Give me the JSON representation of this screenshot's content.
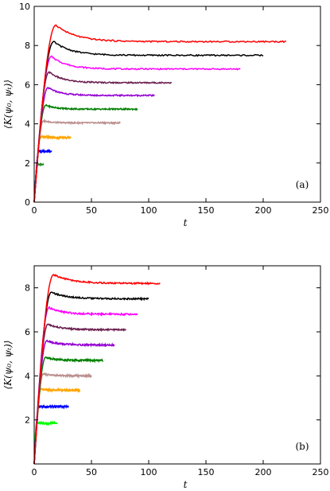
{
  "chart_data": [
    {
      "type": "line",
      "panel_label": "(a)",
      "xlabel": "t",
      "ylabel": "⟨K(ψ₀, ψₜ)⟩",
      "xlim": [
        0,
        250
      ],
      "ylim": [
        0,
        10
      ],
      "xticks": [
        0,
        50,
        100,
        150,
        200,
        250
      ],
      "yticks": [
        0,
        2,
        4,
        6,
        8,
        10
      ],
      "grid": false,
      "series": [
        {
          "color": "#228b22",
          "peak": 1.95,
          "peak_t": 3,
          "plateau": 1.9,
          "end_t": 8
        },
        {
          "color": "#0000ff",
          "peak": 2.6,
          "peak_t": 4,
          "plateau": 2.6,
          "end_t": 15
        },
        {
          "color": "#ffa500",
          "peak": 3.35,
          "peak_t": 6,
          "plateau": 3.3,
          "end_t": 32
        },
        {
          "color": "#bc8f8f",
          "peak": 4.15,
          "peak_t": 8,
          "plateau": 4.05,
          "end_t": 75
        },
        {
          "color": "#008000",
          "peak": 4.95,
          "peak_t": 10,
          "plateau": 4.75,
          "end_t": 90
        },
        {
          "color": "#9400d3",
          "peak": 5.85,
          "peak_t": 12,
          "plateau": 5.45,
          "end_t": 105
        },
        {
          "color": "#6b1f4f",
          "peak": 6.65,
          "peak_t": 13,
          "plateau": 6.1,
          "end_t": 120
        },
        {
          "color": "#ff00ff",
          "peak": 7.45,
          "peak_t": 15,
          "plateau": 6.8,
          "end_t": 180
        },
        {
          "color": "#000000",
          "peak": 8.2,
          "peak_t": 17,
          "plateau": 7.5,
          "end_t": 200
        },
        {
          "color": "#ff0000",
          "peak": 9.05,
          "peak_t": 19,
          "plateau": 8.2,
          "end_t": 220
        }
      ]
    },
    {
      "type": "line",
      "panel_label": "(b)",
      "xlabel": "t",
      "ylabel": "⟨K(ψ₀, ψₜ)⟩",
      "xlim": [
        0,
        250
      ],
      "ylim": [
        0,
        9
      ],
      "xticks": [
        0,
        50,
        100,
        150,
        200,
        250
      ],
      "yticks": [
        2,
        4,
        6,
        8
      ],
      "grid": false,
      "series": [
        {
          "color": "#00ff00",
          "peak": 1.85,
          "peak_t": 2,
          "plateau": 1.85,
          "end_t": 20
        },
        {
          "color": "#0000ff",
          "peak": 2.6,
          "peak_t": 4,
          "plateau": 2.6,
          "end_t": 30
        },
        {
          "color": "#ffa500",
          "peak": 3.4,
          "peak_t": 6,
          "plateau": 3.35,
          "end_t": 40
        },
        {
          "color": "#bc8f8f",
          "peak": 4.1,
          "peak_t": 8,
          "plateau": 4.0,
          "end_t": 50
        },
        {
          "color": "#008000",
          "peak": 4.85,
          "peak_t": 10,
          "plateau": 4.7,
          "end_t": 60
        },
        {
          "color": "#9400d3",
          "peak": 5.6,
          "peak_t": 11,
          "plateau": 5.4,
          "end_t": 70
        },
        {
          "color": "#6b1f4f",
          "peak": 6.35,
          "peak_t": 12,
          "plateau": 6.1,
          "end_t": 80
        },
        {
          "color": "#ff00ff",
          "peak": 7.1,
          "peak_t": 13,
          "plateau": 6.8,
          "end_t": 90
        },
        {
          "color": "#000000",
          "peak": 7.8,
          "peak_t": 15,
          "plateau": 7.5,
          "end_t": 100
        },
        {
          "color": "#ff0000",
          "peak": 8.6,
          "peak_t": 17,
          "plateau": 8.2,
          "end_t": 110
        }
      ]
    }
  ]
}
